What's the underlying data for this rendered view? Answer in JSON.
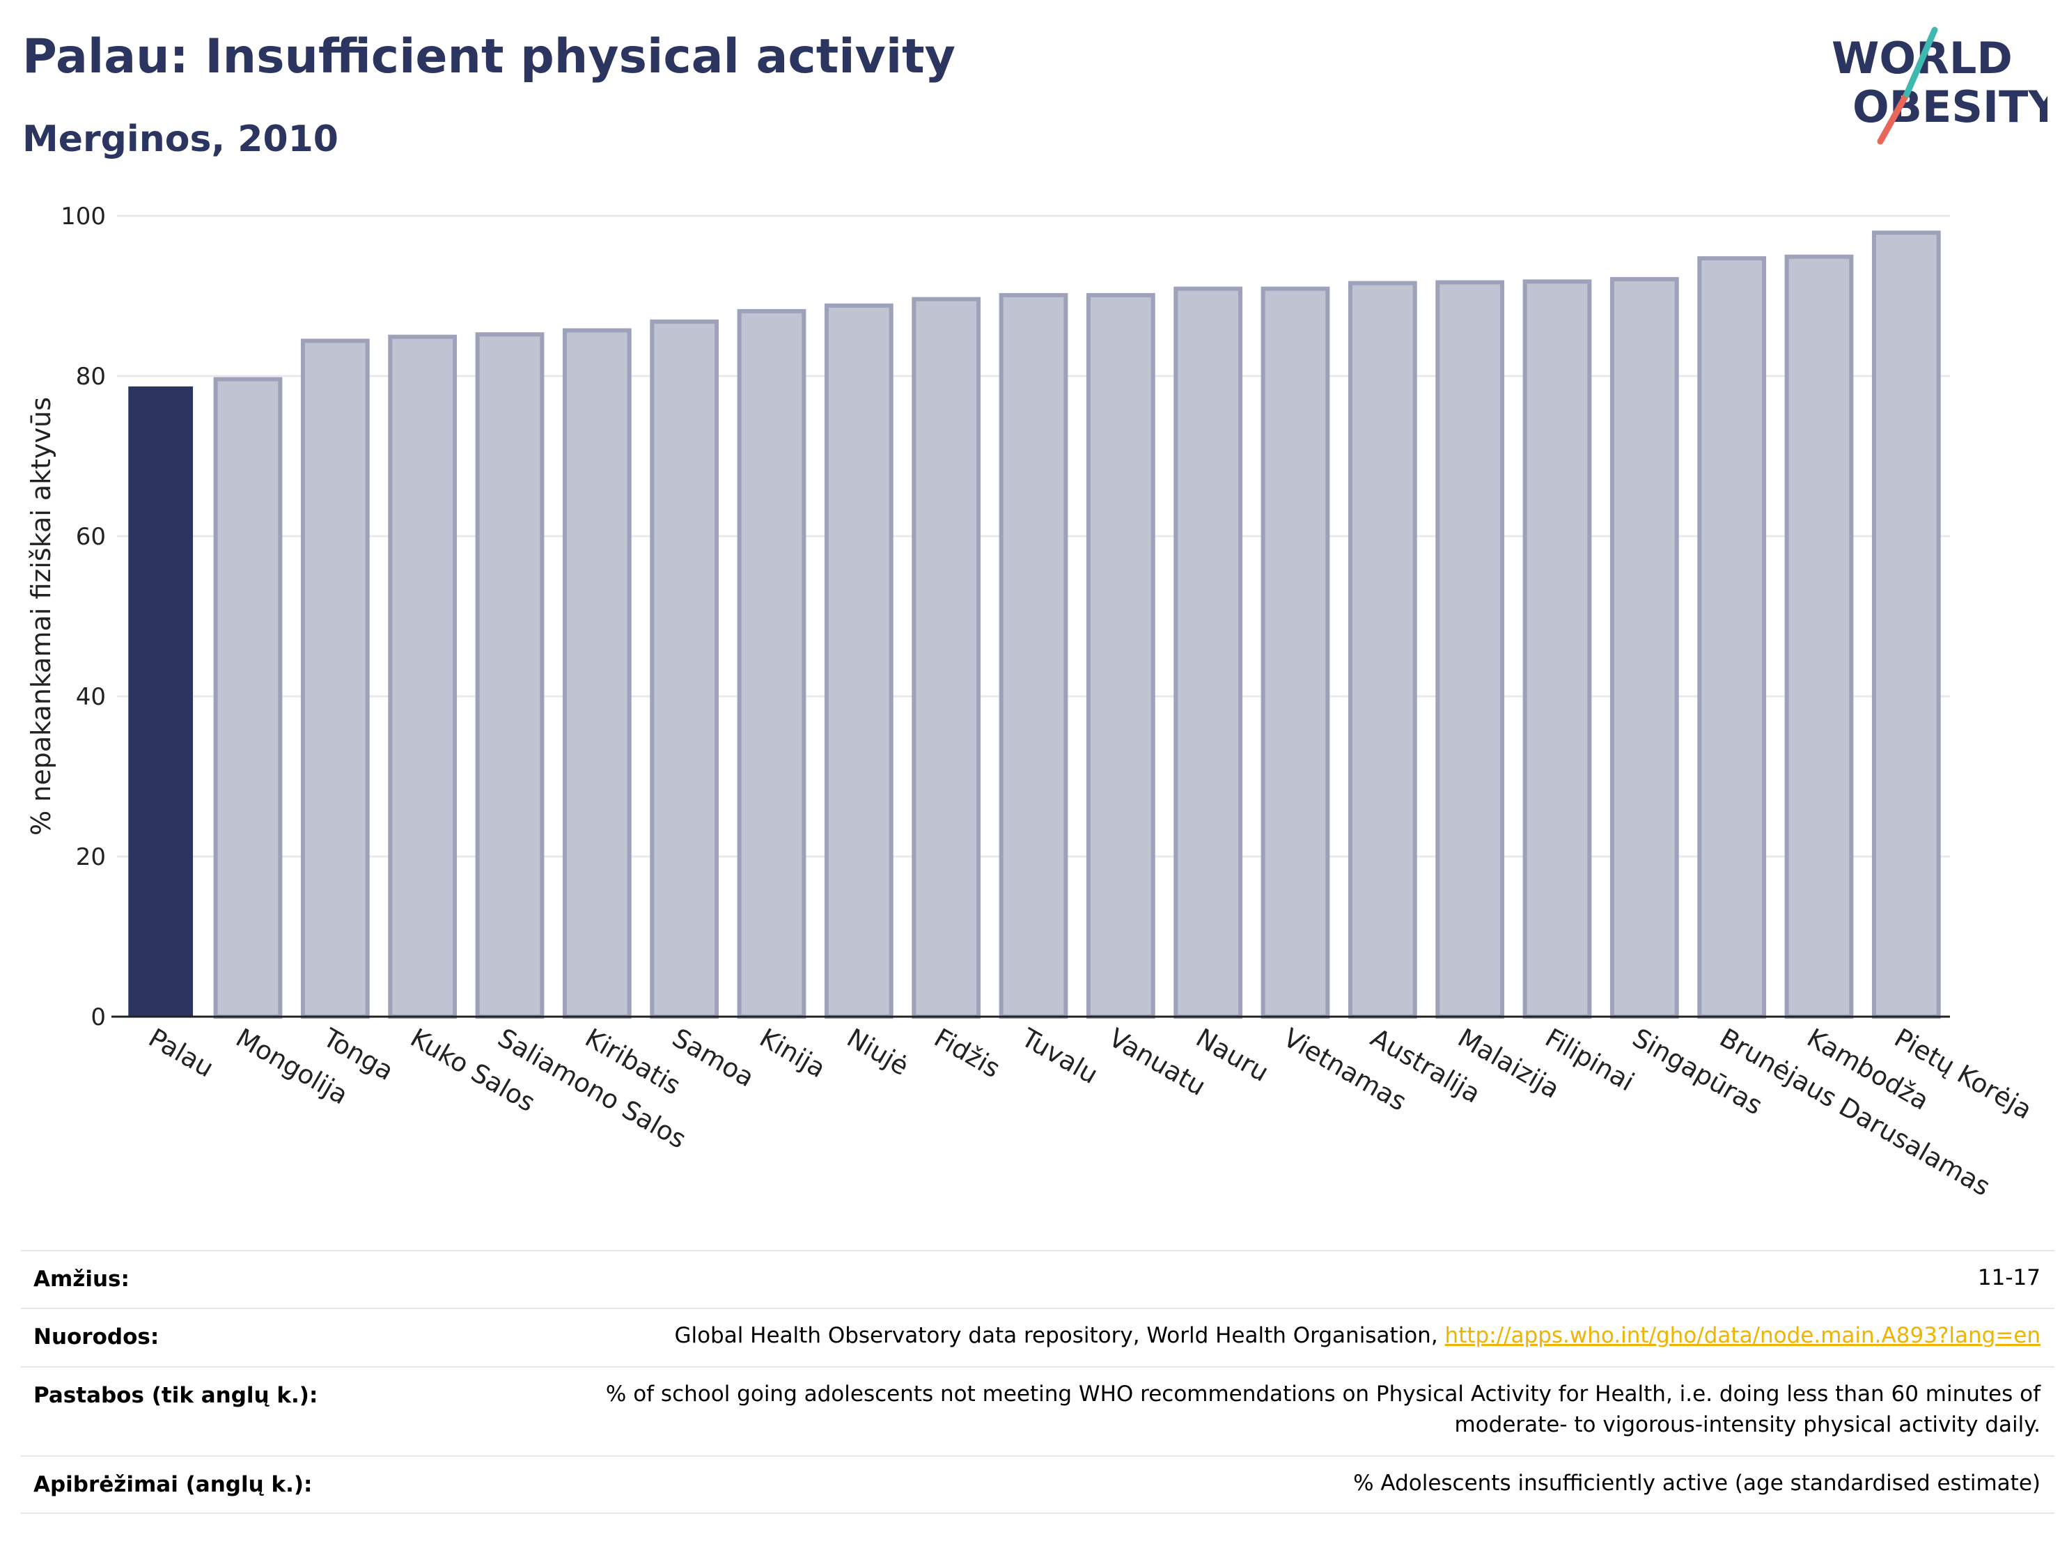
{
  "header": {
    "title": "Palau: Insufficient physical activity",
    "subtitle": "Merginos, 2010",
    "logo_line1": "WORLD",
    "logo_line2": "OBESITY"
  },
  "chart_data": {
    "type": "bar",
    "ylabel": "% nepakankamai fiziškai aktyvūs",
    "ylim": [
      0,
      100
    ],
    "yticks": [
      0,
      20,
      40,
      60,
      80,
      100
    ],
    "grid": true,
    "categories": [
      "Palau",
      "Mongolija",
      "Tonga",
      "Kuko Salos",
      "Saliamono Salos",
      "Kiribatis",
      "Samoa",
      "Kinija",
      "Niujė",
      "Fidžis",
      "Tuvalu",
      "Vanuatu",
      "Nauru",
      "Vietnamas",
      "Australija",
      "Malaizija",
      "Filipinai",
      "Singapūras",
      "Brunėjaus Darusalamas",
      "Kambodža",
      "Pietų Korėja"
    ],
    "values": [
      78.7,
      79.6,
      84.4,
      84.9,
      85.2,
      85.7,
      86.8,
      88.1,
      88.8,
      89.6,
      90.1,
      90.1,
      90.9,
      90.9,
      91.6,
      91.7,
      91.8,
      92.1,
      94.7,
      94.9,
      97.9
    ],
    "highlight_index": 0,
    "highlight_color": "#2b3560",
    "bar_color": "#c0c3d1",
    "bar_edge_color": "#9da2ba"
  },
  "meta": {
    "rows": [
      {
        "label": "Amžius:",
        "value": "11-17"
      },
      {
        "label": "Nuorodos:",
        "value": "Global Health Observatory data repository, World Health Organisation, ",
        "link": "http://apps.who.int/gho/data/node.main.A893?lang=en"
      },
      {
        "label": "Pastabos (tik anglų k.):",
        "value": "% of school going adolescents not meeting WHO recommendations on Physical Activity for Health, i.e. doing less than 60 minutes of moderate- to vigorous-intensity physical activity daily."
      },
      {
        "label": "Apibrėžimai (anglų k.):",
        "value": "% Adolescents insufficiently active (age standardised estimate)"
      }
    ]
  }
}
